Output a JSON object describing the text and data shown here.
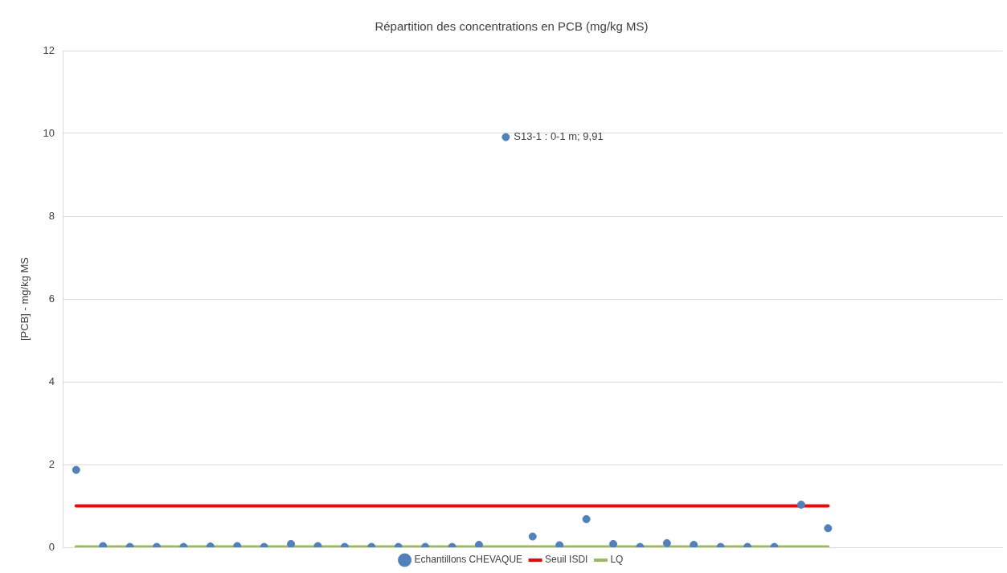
{
  "chart_data": {
    "type": "scatter",
    "title": "Répartition des concentrations en PCB (mg/kg MS)",
    "ylabel": "[PCB] - mg/kg MS",
    "categories": [
      null,
      null,
      null,
      null,
      null,
      null,
      null,
      null,
      null,
      null,
      null,
      null,
      null,
      null,
      null,
      null,
      null,
      null,
      null,
      null,
      null,
      null,
      null,
      null,
      null,
      null,
      null,
      null,
      null,
      null,
      null,
      null,
      null,
      null,
      null
    ],
    "marker": "circle",
    "series": [
      {
        "name": "Echantillons CHEVAQUE",
        "color": "#4f81bd",
        "values": [
          1.87,
          0.03,
          0.01,
          0.01,
          0.01,
          0.02,
          0.03,
          0.01,
          0.08,
          0.03,
          0.01,
          0.01,
          0.01,
          0.01,
          0.01,
          0.06,
          9.91,
          0.26,
          0.05,
          0.68,
          0.08,
          0.01,
          0.1,
          0.06,
          0.01,
          0.01,
          0.01,
          1.03,
          0.46,
          null,
          null,
          null,
          null,
          null,
          null
        ]
      },
      {
        "name": "Seuil ISDI",
        "color": "#ff0000",
        "type": "line",
        "marker": "none",
        "values": [
          1,
          1,
          1,
          1,
          1,
          1,
          1,
          1,
          1,
          1,
          1,
          1,
          1,
          1,
          1,
          1,
          1,
          1,
          1,
          1,
          1,
          1,
          1,
          1,
          1,
          1,
          1,
          1,
          1,
          null,
          null,
          null,
          null,
          null,
          null
        ]
      },
      {
        "name": "LQ",
        "color": "#9bbb59",
        "type": "line",
        "marker": "none",
        "values": [
          0.01,
          0.01,
          0.01,
          0.01,
          0.01,
          0.01,
          0.01,
          0.01,
          0.01,
          0.01,
          0.01,
          0.01,
          0.01,
          0.01,
          0.01,
          0.01,
          0.01,
          0.01,
          0.01,
          0.01,
          0.01,
          0.01,
          0.01,
          0.01,
          0.01,
          0.01,
          0.01,
          0.01,
          0.01,
          null,
          null,
          null,
          null,
          null,
          null
        ]
      }
    ],
    "annotations": [
      "S13-1 : 0-1 m; 9,91"
    ],
    "ylim": [
      0,
      12
    ],
    "yticks": [
      0,
      2,
      4,
      6,
      8,
      10,
      12
    ],
    "tick_labels": "y",
    "grid": "y",
    "legend": "bottom"
  }
}
